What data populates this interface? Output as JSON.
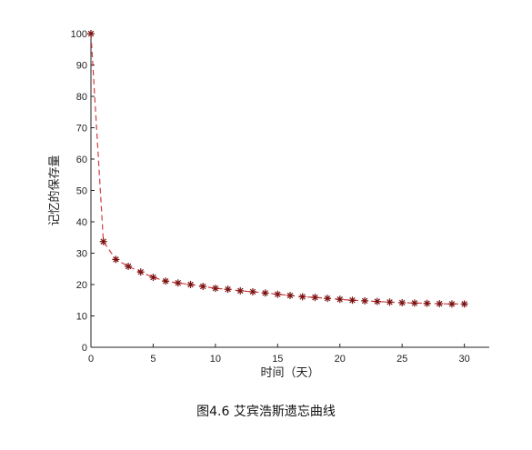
{
  "chart_data": {
    "type": "line",
    "title": "",
    "xlabel": "时间（天）",
    "ylabel": "记忆的保存量",
    "xlim": [
      0,
      32
    ],
    "ylim": [
      0,
      100
    ],
    "xticks": [
      0,
      5,
      10,
      15,
      20,
      25,
      30
    ],
    "yticks": [
      0,
      10,
      20,
      30,
      40,
      50,
      60,
      70,
      80,
      90,
      100
    ],
    "grid": false,
    "line_style": "dashed",
    "line_color": "#d23c3c",
    "marker": "asterisk",
    "marker_color": "#7a1010",
    "series": [
      {
        "x": [
          0,
          1,
          2,
          3,
          4,
          5,
          6,
          7,
          8,
          9,
          10,
          11,
          12,
          13,
          14,
          15,
          16,
          17,
          18,
          19,
          20,
          21,
          22,
          23,
          24,
          25,
          26,
          27,
          28,
          29,
          30
        ],
        "values": [
          100,
          33.7,
          28,
          25.8,
          24,
          22.3,
          21.1,
          20.5,
          20,
          19.4,
          18.8,
          18.5,
          18,
          17.7,
          17.3,
          16.9,
          16.5,
          16.1,
          15.9,
          15.6,
          15.3,
          15,
          14.8,
          14.6,
          14.4,
          14.2,
          14.1,
          14,
          13.9,
          13.8,
          13.8
        ]
      }
    ]
  },
  "caption": "图4.6  艾宾浩斯遗忘曲线"
}
